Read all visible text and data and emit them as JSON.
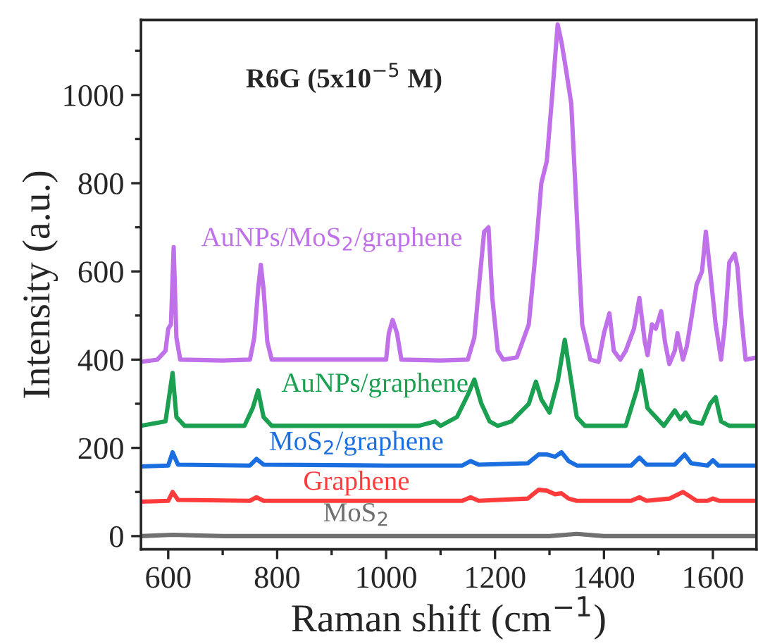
{
  "chart_data": {
    "type": "line",
    "title": "R6G (5x10$^{−5}$ M)",
    "xlabel": "Raman shift (cm$^{−1}$)",
    "ylabel": "Intensity (a.u.)",
    "xlim": [
      550,
      1680
    ],
    "xticks": [
      600,
      800,
      1000,
      1200,
      1400,
      1600
    ],
    "ylim": [
      -30,
      1170
    ],
    "yticks": [
      0,
      200,
      400,
      600,
      800,
      1000
    ],
    "grid": false,
    "legend": false,
    "marker": "none",
    "line_style": "solid",
    "series": [
      {
        "name": "AuNPs/MoS$_{2}$/graphene",
        "color": "#c070e8",
        "x": [
          550,
          580,
          595,
          600,
          605,
          610,
          615,
          622,
          700,
          750,
          758,
          765,
          770,
          775,
          782,
          790,
          900,
          1000,
          1005,
          1012,
          1020,
          1028,
          1100,
          1150,
          1162,
          1170,
          1180,
          1188,
          1195,
          1205,
          1215,
          1240,
          1262,
          1275,
          1285,
          1295,
          1305,
          1315,
          1322,
          1330,
          1340,
          1350,
          1360,
          1375,
          1390,
          1400,
          1410,
          1418,
          1430,
          1440,
          1455,
          1465,
          1475,
          1480,
          1488,
          1495,
          1505,
          1512,
          1520,
          1530,
          1535,
          1545,
          1552,
          1560,
          1570,
          1580,
          1587,
          1595,
          1605,
          1615,
          1622,
          1630,
          1640,
          1645,
          1652,
          1660,
          1680
        ],
        "values": [
          395,
          400,
          420,
          470,
          480,
          655,
          450,
          400,
          398,
          400,
          450,
          560,
          615,
          560,
          440,
          400,
          400,
          400,
          460,
          490,
          460,
          400,
          398,
          400,
          450,
          560,
          690,
          700,
          540,
          420,
          400,
          405,
          480,
          650,
          800,
          850,
          1000,
          1160,
          1120,
          1060,
          980,
          730,
          480,
          400,
          395,
          460,
          505,
          420,
          400,
          420,
          470,
          540,
          440,
          410,
          480,
          470,
          510,
          440,
          390,
          420,
          460,
          400,
          430,
          490,
          570,
          600,
          690,
          600,
          480,
          400,
          480,
          620,
          640,
          610,
          500,
          400,
          405
        ]
      },
      {
        "name": "AuNPs/graphene",
        "color": "#1aa050",
        "x": [
          550,
          595,
          608,
          615,
          630,
          740,
          755,
          765,
          775,
          790,
          1000,
          1060,
          1090,
          1100,
          1130,
          1150,
          1162,
          1175,
          1190,
          1205,
          1230,
          1262,
          1275,
          1285,
          1300,
          1315,
          1328,
          1340,
          1350,
          1365,
          1440,
          1460,
          1468,
          1480,
          1495,
          1510,
          1530,
          1540,
          1550,
          1560,
          1580,
          1595,
          1605,
          1615,
          1630,
          1680
        ],
        "values": [
          250,
          260,
          370,
          270,
          250,
          250,
          290,
          330,
          270,
          250,
          250,
          250,
          260,
          250,
          270,
          320,
          355,
          300,
          260,
          250,
          260,
          300,
          350,
          310,
          280,
          350,
          445,
          350,
          270,
          250,
          250,
          330,
          375,
          290,
          270,
          250,
          285,
          265,
          280,
          260,
          255,
          300,
          315,
          260,
          250,
          250
        ]
      },
      {
        "name": "MoS$_{2}$/graphene",
        "color": "#1a6ee0",
        "x": [
          550,
          600,
          608,
          618,
          750,
          762,
          775,
          1000,
          1140,
          1155,
          1170,
          1260,
          1280,
          1295,
          1310,
          1322,
          1335,
          1350,
          1450,
          1465,
          1478,
          1530,
          1548,
          1560,
          1590,
          1600,
          1610,
          1680
        ],
        "values": [
          158,
          160,
          190,
          162,
          160,
          175,
          162,
          160,
          160,
          170,
          162,
          165,
          185,
          185,
          180,
          190,
          170,
          160,
          160,
          178,
          162,
          162,
          185,
          165,
          160,
          172,
          160,
          160
        ]
      },
      {
        "name": "Graphene",
        "color": "#ff3b3b",
        "x": [
          550,
          600,
          608,
          618,
          750,
          762,
          775,
          1140,
          1155,
          1170,
          1260,
          1280,
          1295,
          1310,
          1322,
          1335,
          1350,
          1450,
          1465,
          1478,
          1520,
          1545,
          1555,
          1570,
          1590,
          1600,
          1612,
          1680
        ],
        "values": [
          78,
          80,
          100,
          82,
          80,
          88,
          80,
          80,
          88,
          80,
          85,
          105,
          103,
          95,
          97,
          85,
          80,
          80,
          88,
          80,
          85,
          100,
          92,
          80,
          80,
          85,
          80,
          80
        ]
      },
      {
        "name": "MoS$_{2}$",
        "color": "#707070",
        "x": [
          550,
          608,
          700,
          1000,
          1300,
          1350,
          1400,
          1680
        ],
        "values": [
          0,
          3,
          0,
          0,
          0,
          5,
          0,
          0
        ]
      }
    ]
  }
}
